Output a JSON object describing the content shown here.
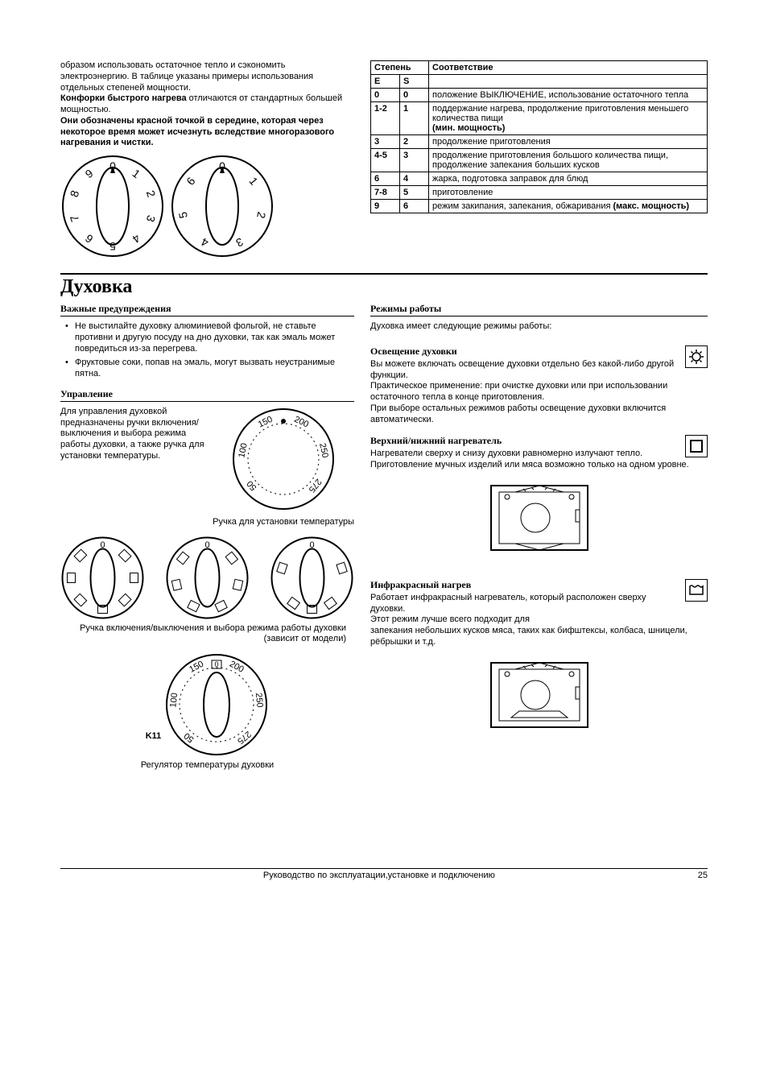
{
  "top": {
    "para1": "образом использовать остаточное тепло и сэкономить электроэнергию. В таблице указаны примеры использования отдельных степеней мощности.",
    "bold1a": "Конфорки быстрого нагрева",
    "para2_tail": " отличаются от стандартных большей мощностью.",
    "bold2": "Они обозначены красной точкой в середине, которая через некоторое время может исчезнуть вследствие многоразового нагревания и чистки."
  },
  "table": {
    "h1": "Степень",
    "h2": "Соответствие",
    "sub_e": "E",
    "sub_s": "S",
    "rows": [
      {
        "e": "0",
        "s": "0",
        "txt": "положение ВЫКЛЮЧЕНИЕ, использование остаточного тепла"
      },
      {
        "e": "1-2",
        "s": "1",
        "txt": "поддержание нагрева, продолжение приготовления меньшего количества пищи",
        "bold_tail": "(мин. мощность)"
      },
      {
        "e": "3",
        "s": "2",
        "txt": "продолжение приготовления"
      },
      {
        "e": "4-5",
        "s": "3",
        "txt": "продолжение приготовления большого количества пищи, продолжение запекания больших кусков"
      },
      {
        "e": "6",
        "s": "4",
        "txt": "жарка, подготовка заправок для блюд"
      },
      {
        "e": "7-8",
        "s": "5",
        "txt": "приготовление"
      },
      {
        "e": "9",
        "s": "6",
        "txt": "режим закипания, запекания, обжаривания ",
        "bold_tail": "(макс. мощность)"
      }
    ]
  },
  "oven": {
    "title": "Духовка",
    "warnings_title": "Важные предупреждения",
    "warn1": "Не выстилайте духовку алюминиевой фольгой, не ставьте противни и другую посуду на дно духовки, так как эмаль может повредиться из-за перегрева.",
    "warn2": "Фруктовые соки, попав на эмаль, могут вызвать неустранимые пятна.",
    "control_title": "Управление",
    "control_text": "Для управления духовкой предназначены ручки включения/выключения и выбора режима работы духовки, а также ручка для установки температуры.",
    "temp_caption": "Ручка для установки температуры",
    "mode_caption": "Ручка включения/выключения и выбора режима работы духовки (зависит от модели)",
    "k11": "K11",
    "k11_caption": "Регулятор температуры духовки"
  },
  "modes": {
    "title": "Режимы работы",
    "intro": "Духовка имеет следующие режимы работы:",
    "light_title": "Освещение духовки",
    "light_p1": "Вы можете включать освещение духовки отдельно без какой-либо другой функции.",
    "light_p2": "Практическое применение: при очистке духовки или при использовании остаточного тепла в конце приготовления.",
    "light_p3": "При выборе остальных режимов работы освещение духовки включится автоматически.",
    "topbot_title": "Верхний/нижний нагреватель",
    "topbot_p": "Нагреватели сверху и снизу духовки равномерно излучают тепло. Приготовление мучных изделий или мяса возможно только на одном уровне.",
    "ir_title": "Инфракрасный нагрев",
    "ir_p1": "Работает инфракрасный нагреватель, который расположен сверху духовки.",
    "ir_p2": "Этот режим лучше всего подходит для",
    "ir_p3": "запекания небольших кусков мяса,  таких как бифштексы, колбаса, шницели, рёбрышки и т.д."
  },
  "footer": {
    "text": "Руководство по эксплуатации,установке и подключению",
    "page": "25"
  },
  "dial_big": {
    "numbers": [
      "0",
      "1",
      "2",
      "3",
      "4",
      "5",
      "6",
      "7",
      "8",
      "9"
    ]
  },
  "dial_small": {
    "numbers": [
      "0",
      "1",
      "2",
      "3",
      "4",
      "5",
      "6"
    ]
  },
  "temp_dial": {
    "numbers": [
      "50",
      "100",
      "150",
      "200",
      "250",
      "275"
    ]
  }
}
